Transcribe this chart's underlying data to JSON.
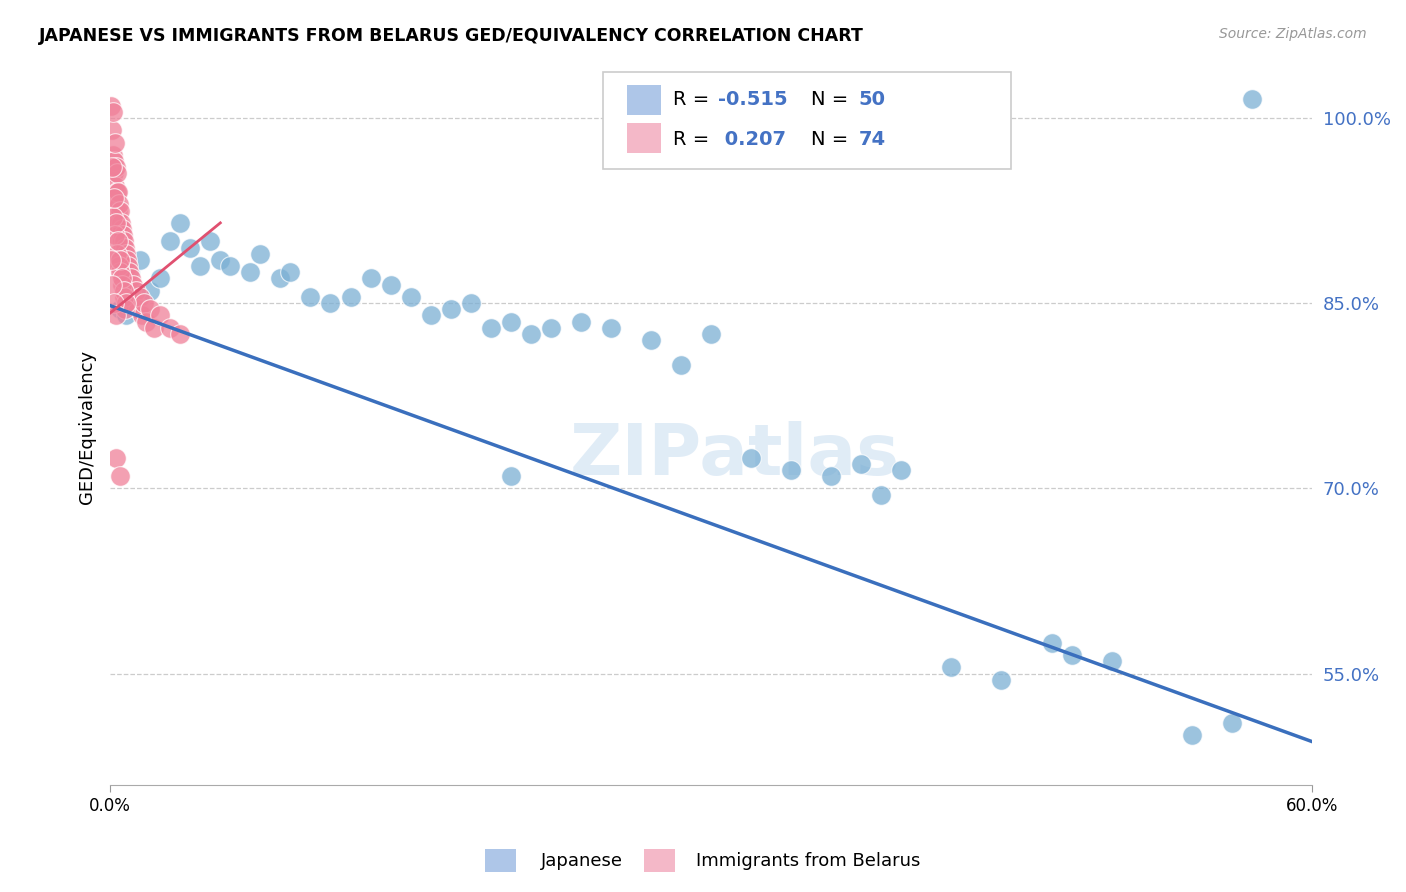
{
  "title": "JAPANESE VS IMMIGRANTS FROM BELARUS GED/EQUIVALENCY CORRELATION CHART",
  "source": "Source: ZipAtlas.com",
  "ylabel": "GED/Equivalency",
  "xmin": 0.0,
  "xmax": 60.0,
  "ymin": 46.0,
  "ymax": 104.0,
  "watermark": "ZIPatlas",
  "ytick_vals": [
    55.0,
    70.0,
    85.0,
    100.0
  ],
  "japanese_color": "#7bafd4",
  "belarus_color": "#f08099",
  "blue_line_color": "#3a6fbd",
  "pink_line_color": "#e05070",
  "japanese_points": [
    [
      0.5,
      84.5
    ],
    [
      0.8,
      84.0
    ],
    [
      1.0,
      87.5
    ],
    [
      1.5,
      88.5
    ],
    [
      2.0,
      86.0
    ],
    [
      2.5,
      87.0
    ],
    [
      3.0,
      90.0
    ],
    [
      3.5,
      91.5
    ],
    [
      4.0,
      89.5
    ],
    [
      4.5,
      88.0
    ],
    [
      5.0,
      90.0
    ],
    [
      5.5,
      88.5
    ],
    [
      6.0,
      88.0
    ],
    [
      7.0,
      87.5
    ],
    [
      7.5,
      89.0
    ],
    [
      8.5,
      87.0
    ],
    [
      9.0,
      87.5
    ],
    [
      10.0,
      85.5
    ],
    [
      11.0,
      85.0
    ],
    [
      12.0,
      85.5
    ],
    [
      13.0,
      87.0
    ],
    [
      14.0,
      86.5
    ],
    [
      15.0,
      85.5
    ],
    [
      16.0,
      84.0
    ],
    [
      17.0,
      84.5
    ],
    [
      18.0,
      85.0
    ],
    [
      19.0,
      83.0
    ],
    [
      20.0,
      83.5
    ],
    [
      21.0,
      82.5
    ],
    [
      22.0,
      83.0
    ],
    [
      23.5,
      83.5
    ],
    [
      25.0,
      83.0
    ],
    [
      27.0,
      82.0
    ],
    [
      28.5,
      80.0
    ],
    [
      30.0,
      82.5
    ],
    [
      32.0,
      72.5
    ],
    [
      34.0,
      71.5
    ],
    [
      36.0,
      71.0
    ],
    [
      37.5,
      72.0
    ],
    [
      38.5,
      69.5
    ],
    [
      39.5,
      71.5
    ],
    [
      42.0,
      55.5
    ],
    [
      44.5,
      54.5
    ],
    [
      47.0,
      57.5
    ],
    [
      48.0,
      56.5
    ],
    [
      50.0,
      56.0
    ],
    [
      54.0,
      50.0
    ],
    [
      56.0,
      51.0
    ],
    [
      57.0,
      101.5
    ],
    [
      20.0,
      71.0
    ]
  ],
  "belarus_points": [
    [
      0.05,
      101.0
    ],
    [
      0.1,
      99.0
    ],
    [
      0.12,
      97.0
    ],
    [
      0.15,
      100.5
    ],
    [
      0.18,
      95.5
    ],
    [
      0.2,
      96.5
    ],
    [
      0.22,
      98.0
    ],
    [
      0.25,
      94.5
    ],
    [
      0.28,
      96.0
    ],
    [
      0.3,
      93.0
    ],
    [
      0.32,
      94.0
    ],
    [
      0.35,
      95.5
    ],
    [
      0.38,
      92.5
    ],
    [
      0.4,
      94.0
    ],
    [
      0.42,
      91.5
    ],
    [
      0.45,
      93.0
    ],
    [
      0.48,
      91.0
    ],
    [
      0.5,
      92.5
    ],
    [
      0.52,
      90.5
    ],
    [
      0.55,
      91.5
    ],
    [
      0.58,
      90.0
    ],
    [
      0.6,
      91.0
    ],
    [
      0.62,
      89.5
    ],
    [
      0.65,
      90.5
    ],
    [
      0.68,
      89.0
    ],
    [
      0.7,
      90.0
    ],
    [
      0.72,
      88.5
    ],
    [
      0.75,
      89.5
    ],
    [
      0.78,
      88.0
    ],
    [
      0.8,
      89.0
    ],
    [
      0.83,
      87.5
    ],
    [
      0.85,
      88.5
    ],
    [
      0.88,
      87.0
    ],
    [
      0.9,
      88.0
    ],
    [
      0.92,
      86.5
    ],
    [
      0.95,
      87.5
    ],
    [
      1.0,
      86.0
    ],
    [
      1.05,
      87.0
    ],
    [
      1.1,
      85.5
    ],
    [
      1.15,
      86.5
    ],
    [
      1.2,
      85.0
    ],
    [
      1.3,
      86.0
    ],
    [
      1.4,
      84.5
    ],
    [
      1.5,
      85.5
    ],
    [
      1.6,
      84.0
    ],
    [
      1.7,
      85.0
    ],
    [
      1.8,
      83.5
    ],
    [
      2.0,
      84.5
    ],
    [
      2.2,
      83.0
    ],
    [
      2.5,
      84.0
    ],
    [
      3.0,
      83.0
    ],
    [
      3.5,
      82.5
    ],
    [
      0.15,
      92.0
    ],
    [
      0.25,
      90.5
    ],
    [
      0.35,
      89.0
    ],
    [
      0.45,
      88.0
    ],
    [
      0.5,
      87.5
    ],
    [
      0.6,
      86.5
    ],
    [
      0.7,
      85.5
    ],
    [
      0.75,
      84.5
    ],
    [
      0.08,
      96.0
    ],
    [
      0.18,
      93.5
    ],
    [
      0.28,
      91.5
    ],
    [
      0.38,
      90.0
    ],
    [
      0.48,
      88.5
    ],
    [
      0.58,
      87.0
    ],
    [
      0.68,
      86.0
    ],
    [
      0.78,
      85.0
    ],
    [
      0.05,
      88.5
    ],
    [
      0.1,
      86.5
    ],
    [
      0.2,
      85.0
    ],
    [
      0.3,
      84.0
    ],
    [
      0.3,
      72.5
    ],
    [
      0.5,
      71.0
    ]
  ],
  "blue_line": {
    "x0": 0.0,
    "y0": 84.8,
    "x1": 60.0,
    "y1": 49.5
  },
  "pink_line": {
    "x0": 0.0,
    "y0": 84.2,
    "x1": 5.5,
    "y1": 91.5
  }
}
